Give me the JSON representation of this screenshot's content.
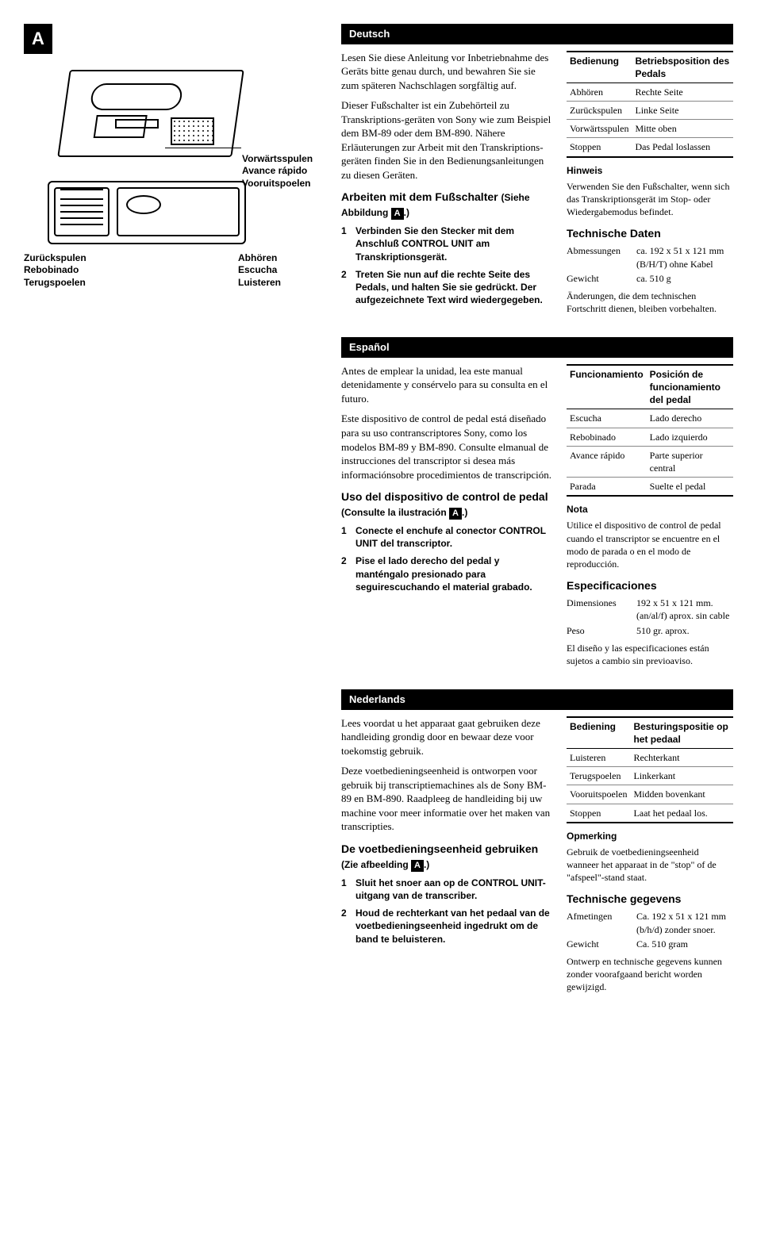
{
  "diagram": {
    "letter": "A",
    "labels": {
      "fwd": "Vorwärtsspulen\nAvance rápido\nVooruitspoelen",
      "rew": "Zurückspulen\nRebobinado\nTerugspoelen",
      "listen": "Abhören\nEscucha\nLuisteren"
    }
  },
  "sections": [
    {
      "lang": "Deutsch",
      "intro1": "Lesen Sie diese Anleitung vor Inbetriebnahme des Geräts bitte genau durch, und bewahren Sie sie zum späteren Nachschlagen sorgfältig auf.",
      "intro2": "Dieser Fußschalter ist ein Zubehörteil zu Transkriptions-geräten von Sony wie zum Beispiel dem BM-89 oder dem BM-890. Nähere Erläuterungen zur Arbeit mit den Transkriptions-geräten finden Sie in den Bedienungsanleitungen zu diesen Geräten.",
      "h_use": "Arbeiten mit dem Fußschalter",
      "h_use_sub": "(Siehe Abbildung",
      "step1": "Verbinden Sie den Stecker mit dem Anschluß CONTROL UNIT am Transkriptionsgerät.",
      "step2": "Treten Sie nun auf die rechte Seite des Pedals, und halten Sie sie gedrückt. Der aufgezeichnete Text wird wiedergegeben.",
      "table_h1": "Bedienung",
      "table_h2": "Betriebsposition des Pedals",
      "rows": [
        [
          "Abhören",
          "Rechte Seite"
        ],
        [
          "Zurückspulen",
          "Linke Seite"
        ],
        [
          "Vorwärtsspulen",
          "Mitte oben"
        ],
        [
          "Stoppen",
          "Das Pedal loslassen"
        ]
      ],
      "note_h": "Hinweis",
      "note": "Verwenden Sie den Fußschalter, wenn sich das Transkriptionsgerät im Stop- oder Wiedergabemodus befindet.",
      "h_spec": "Technische Daten",
      "specs": [
        [
          "Abmessungen",
          "ca. 192 x 51 x 121 mm (B/H/T) ohne Kabel"
        ],
        [
          "Gewicht",
          "ca. 510 g"
        ]
      ],
      "foot": "Änderungen, die dem technischen Fortschritt dienen, bleiben vorbehalten."
    },
    {
      "lang": "Español",
      "intro1": "Antes de emplear la unidad, lea este manual detenidamente y consérvelo para su consulta en el futuro.",
      "intro2": "Este dispositivo de control de pedal está diseñado para su uso contranscriptores Sony, como los modelos BM-89 y BM-890. Consulte elmanual de instrucciones del transcriptor si desea más informaciónsobre procedimientos de transcripción.",
      "h_use": "Uso del dispositivo de control de pedal",
      "h_use_sub": "(Consulte la ilustración",
      "step1": "Conecte el enchufe al conector CONTROL UNIT del transcriptor.",
      "step2": "Pise el lado derecho del pedal y manténgalo presionado para seguirescuchando el material grabado.",
      "table_h1": "Funcionamiento",
      "table_h2": "Posición de funcionamiento del pedal",
      "rows": [
        [
          "Escucha",
          "Lado derecho"
        ],
        [
          "Rebobinado",
          "Lado izquierdo"
        ],
        [
          "Avance rápido",
          "Parte superior central"
        ],
        [
          "Parada",
          "Suelte el pedal"
        ]
      ],
      "note_h": "Nota",
      "note": "Utilice el dispositivo de control de pedal cuando el transcriptor se encuentre en el modo de parada o en el modo de reproducción.",
      "h_spec": "Especificaciones",
      "specs": [
        [
          "Dimensiones",
          "192 x 51 x 121 mm. (an/al/f) aprox. sin cable"
        ],
        [
          "Peso",
          "510 gr. aprox."
        ]
      ],
      "foot": "El diseño y las especificaciones están sujetos a cambio sin previoaviso."
    },
    {
      "lang": "Nederlands",
      "intro1": "Lees voordat u het apparaat gaat gebruiken deze handleiding grondig door en bewaar deze voor toekomstig gebruik.",
      "intro2": "Deze voetbedieningseenheid is ontworpen voor gebruik bij transcriptiemachines als de Sony BM-89 en BM-890. Raadpleeg de handleiding bij uw machine voor meer informatie over het maken van transcripties.",
      "h_use": "De voetbedieningseenheid gebruiken",
      "h_use_sub": "(Zie afbeelding",
      "step1": "Sluit het snoer aan op de CONTROL UNIT-uitgang van de transcriber.",
      "step2": "Houd de rechterkant van het pedaal van de voetbedieningseenheid ingedrukt om de band te beluisteren.",
      "table_h1": "Bediening",
      "table_h2": "Besturingspositie op het pedaal",
      "rows": [
        [
          "Luisteren",
          "Rechterkant"
        ],
        [
          "Terugspoelen",
          "Linkerkant"
        ],
        [
          "Vooruitspoelen",
          "Midden bovenkant"
        ],
        [
          "Stoppen",
          "Laat het pedaal los."
        ]
      ],
      "note_h": "Opmerking",
      "note": "Gebruik de voetbedieningseenheid wanneer het apparaat in de \"stop\" of de \"afspeel\"-stand staat.",
      "h_spec": "Technische gegevens",
      "specs": [
        [
          "Afmetingen",
          "Ca. 192 x 51 x 121 mm (b/h/d) zonder snoer."
        ],
        [
          "Gewicht",
          "Ca. 510 gram"
        ]
      ],
      "foot": "Ontwerp en technische gegevens kunnen zonder voorafgaand bericht worden gewijzigd."
    }
  ]
}
